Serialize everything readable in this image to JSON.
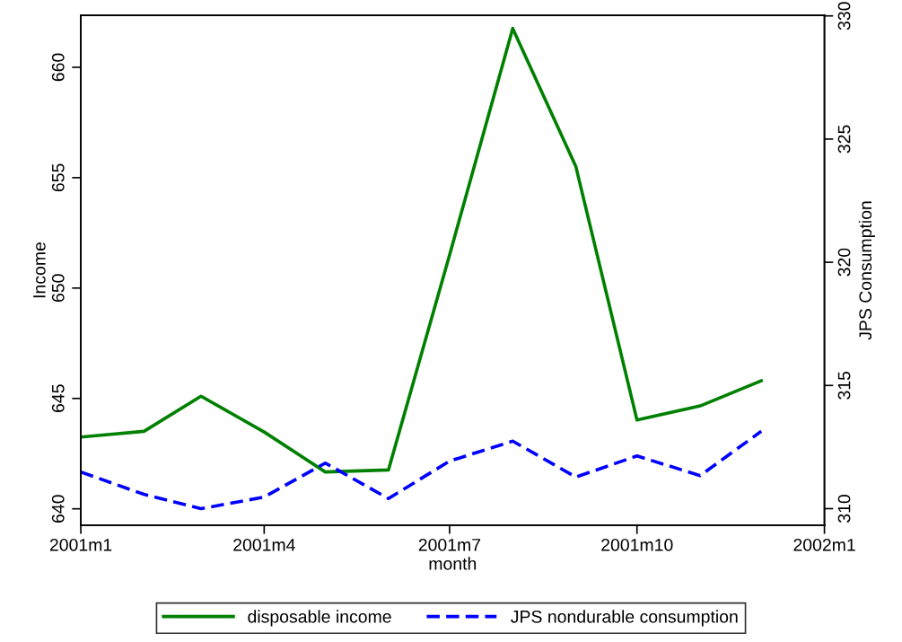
{
  "chart_data": {
    "type": "line",
    "xlabel": "month",
    "ylabel": "Income",
    "y2label": "JPS Consumption",
    "x": [
      "2001-01",
      "2001-02",
      "2001-03",
      "2001-04",
      "2001-05",
      "2001-06",
      "2001-07",
      "2001-08",
      "2001-09",
      "2001-10",
      "2001-11",
      "2001-12"
    ],
    "series": [
      {
        "name": "disposable income",
        "color": "#008000",
        "line_style": "solid",
        "values": [
          643.25,
          643.51,
          645.1,
          643.48,
          641.67,
          641.76,
          651.5,
          661.76,
          655.5,
          644.02,
          644.66,
          645.8
        ]
      },
      {
        "name": "JPS nondurable consumption",
        "color": "#0000ff",
        "line_style": "dashed",
        "axis": "y2",
        "values": [
          311.49,
          310.58,
          310.0,
          310.47,
          311.85,
          310.41,
          311.93,
          312.74,
          311.28,
          312.14,
          311.34,
          313.14
        ]
      }
    ],
    "xlim": [
      "2001-01",
      "2002-01"
    ],
    "xticks": [
      {
        "value": "2001-01",
        "label": "2001m1"
      },
      {
        "value": "2001-04",
        "label": "2001m4"
      },
      {
        "value": "2001-07",
        "label": "2001m7"
      },
      {
        "value": "2001-10",
        "label": "2001m10"
      },
      {
        "value": "2002-01",
        "label": "2002m1"
      }
    ],
    "ylim": [
      639.26,
      662.35
    ],
    "yticks": [
      640,
      645,
      650,
      655,
      660
    ],
    "y2lim": [
      309.33,
      330.02
    ],
    "y2ticks": [
      310,
      315,
      320,
      325,
      330
    ],
    "grid": false,
    "legend": "bottom",
    "marker": "none"
  }
}
